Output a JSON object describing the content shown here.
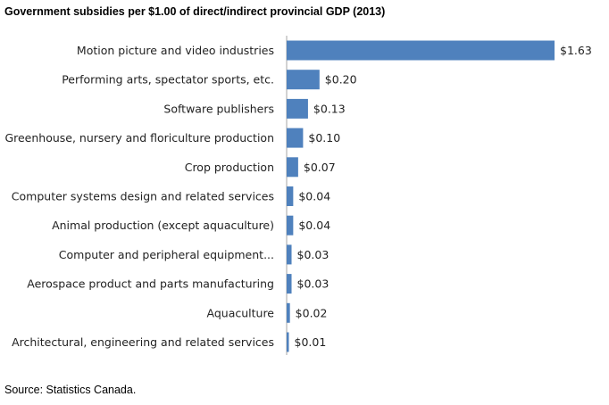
{
  "chart_data": {
    "type": "bar",
    "orientation": "horizontal",
    "title": "Government subsidies per $1.00 of direct/indirect provincial GDP (2013)",
    "categories": [
      "Motion picture and video industries",
      "Performing arts, spectator sports, etc.",
      "Software publishers",
      "Greenhouse, nursery and floriculture production",
      "Crop production",
      "Computer systems design and related services",
      "Animal production (except aquaculture)",
      "Computer and peripheral equipment...",
      "Aerospace product and parts manufacturing",
      "Aquaculture",
      "Architectural, engineering and related services"
    ],
    "values": [
      1.63,
      0.2,
      0.13,
      0.1,
      0.07,
      0.04,
      0.04,
      0.03,
      0.03,
      0.02,
      0.01
    ],
    "value_labels": [
      "$1.63",
      "$0.20",
      "$0.13",
      "$0.10",
      "$0.07",
      "$0.04",
      "$0.04",
      "$0.03",
      "$0.03",
      "$0.02",
      "$0.01"
    ],
    "bar_color": "#4f81bd",
    "xlim": [
      0,
      1.63
    ],
    "grid": false,
    "legend": "none"
  },
  "source": "Source: Statistics Canada."
}
